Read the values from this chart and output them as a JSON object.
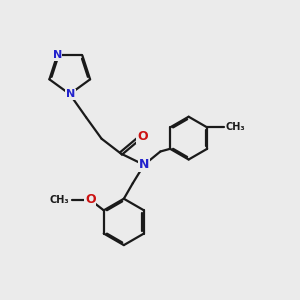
{
  "bg_color": "#ebebeb",
  "bond_color": "#1a1a1a",
  "N_color": "#2222cc",
  "O_color": "#cc1111",
  "lw": 1.6,
  "dbo": 0.055,
  "xlim": [
    0,
    10
  ],
  "ylim": [
    0,
    10
  ]
}
